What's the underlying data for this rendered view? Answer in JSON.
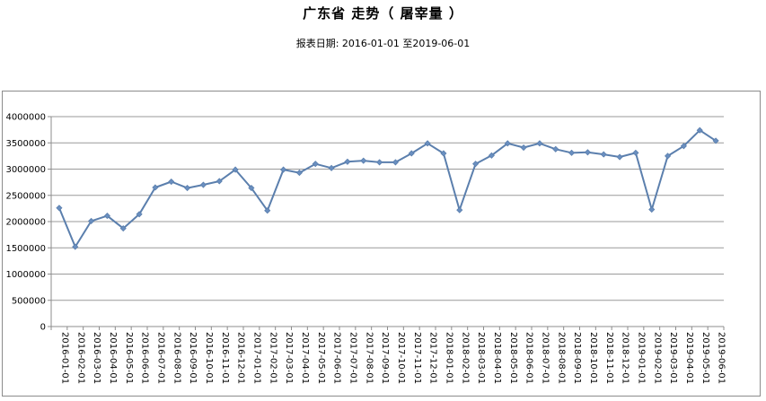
{
  "header": {
    "title": "广东省 走势（ 屠宰量 ）",
    "subtitle": "报表日期: 2016-01-01 至2019-06-01"
  },
  "chart_data": {
    "type": "line",
    "title": "广东省 走势（ 屠宰量 ）",
    "subtitle": "报表日期: 2016-01-01 至2019-06-01",
    "xlabel": "",
    "ylabel": "",
    "ylim": [
      0,
      4000000
    ],
    "yticks": [
      "0",
      "500000",
      "1000000",
      "1500000",
      "2000000",
      "2500000",
      "3000000",
      "3500000",
      "4000000"
    ],
    "grid": true,
    "legend": "none",
    "colors": {
      "line": "#5b7fad",
      "marker": "#6a8fc0",
      "grid": "#9a9a9a",
      "axis": "#8c8c8c"
    },
    "categories": [
      "2016-01-01",
      "2016-02-01",
      "2016-03-01",
      "2016-04-01",
      "2016-05-01",
      "2016-06-01",
      "2016-07-01",
      "2016-08-01",
      "2016-09-01",
      "2016-10-01",
      "2016-11-01",
      "2016-12-01",
      "2017-01-01",
      "2017-02-01",
      "2017-03-01",
      "2017-04-01",
      "2017-05-01",
      "2017-06-01",
      "2017-07-01",
      "2017-08-01",
      "2017-09-01",
      "2017-10-01",
      "2017-11-01",
      "2017-12-01",
      "2018-01-01",
      "2018-02-01",
      "2018-03-01",
      "2018-04-01",
      "2018-05-01",
      "2018-06-01",
      "2018-07-01",
      "2018-08-01",
      "2018-09-01",
      "2018-10-01",
      "2018-11-01",
      "2018-12-01",
      "2019-01-01",
      "2019-02-01",
      "2019-03-01",
      "2019-04-01",
      "2019-05-01",
      "2019-06-01"
    ],
    "series": [
      {
        "values": [
          2260000,
          1520000,
          2010000,
          2110000,
          1870000,
          2140000,
          2650000,
          2760000,
          2640000,
          2700000,
          2770000,
          2990000,
          2640000,
          2210000,
          2990000,
          2930000,
          3100000,
          3020000,
          3140000,
          3160000,
          3130000,
          3130000,
          3300000,
          3490000,
          3300000,
          2220000,
          3100000,
          3260000,
          3490000,
          3410000,
          3490000,
          3380000,
          3310000,
          3320000,
          3280000,
          3230000,
          3310000,
          2230000,
          3250000,
          3440000,
          3740000,
          3540000
        ]
      }
    ]
  }
}
